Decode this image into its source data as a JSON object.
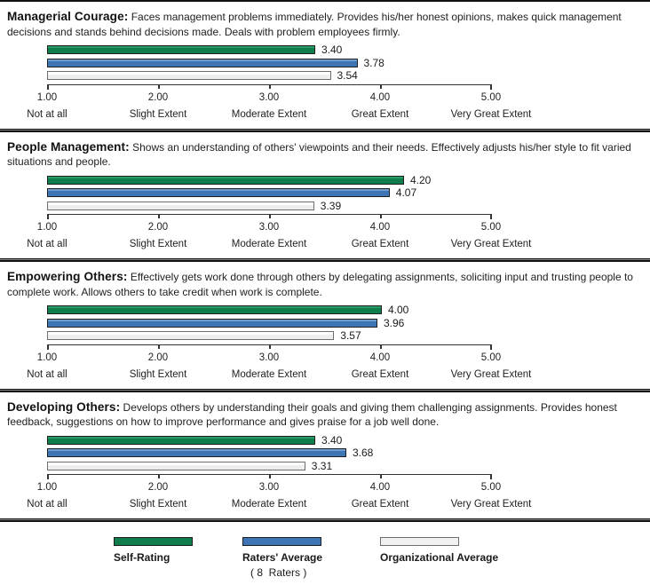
{
  "ui": {
    "title_separator": ":"
  },
  "axis": {
    "ticks": [
      "1.00",
      "2.00",
      "3.00",
      "4.00",
      "5.00"
    ],
    "extent_labels": [
      "Not at all",
      "Slight Extent",
      "Moderate Extent",
      "Great Extent",
      "Very Great Extent"
    ],
    "min": 1.0,
    "max": 5.0
  },
  "colors": {
    "self_rating": "#0e7c4b",
    "raters_average": "#3e75b5",
    "organizational_average": "#f1f1f1",
    "bar_border": "#1f1f1f",
    "org_bar_border": "#6e6e6e",
    "axis": "#333333",
    "rule": "#111111"
  },
  "legend": {
    "self_label": "Self-Rating",
    "raters_label": "Raters' Average",
    "raters_sub": "( 8  Raters )",
    "org_label": "Organizational Average"
  },
  "chart_data": [
    {
      "type": "bar",
      "title": "Managerial Courage",
      "description": "Faces management problems immediately. Provides his/her honest opinions, makes quick management decisions and stands behind decisions made. Deals with problem employees firmly.",
      "xlim": [
        1.0,
        5.0
      ],
      "series": [
        {
          "name": "Self-Rating",
          "value": 3.4,
          "label": "3.40"
        },
        {
          "name": "Raters' Average",
          "value": 3.78,
          "label": "3.78"
        },
        {
          "name": "Organizational Average",
          "value": 3.54,
          "label": "3.54"
        }
      ]
    },
    {
      "type": "bar",
      "title": "People Management",
      "description": "Shows an understanding of others' viewpoints and their needs. Effectively adjusts his/her style to fit varied situations and people.",
      "xlim": [
        1.0,
        5.0
      ],
      "series": [
        {
          "name": "Self-Rating",
          "value": 4.2,
          "label": "4.20"
        },
        {
          "name": "Raters' Average",
          "value": 4.07,
          "label": "4.07"
        },
        {
          "name": "Organizational Average",
          "value": 3.39,
          "label": "3.39"
        }
      ]
    },
    {
      "type": "bar",
      "title": "Empowering Others",
      "description": "Effectively gets work done through others by delegating assignments, soliciting input and trusting people to complete work. Allows others to take credit when work is complete.",
      "xlim": [
        1.0,
        5.0
      ],
      "series": [
        {
          "name": "Self-Rating",
          "value": 4.0,
          "label": "4.00"
        },
        {
          "name": "Raters' Average",
          "value": 3.96,
          "label": "3.96"
        },
        {
          "name": "Organizational Average",
          "value": 3.57,
          "label": "3.57"
        }
      ]
    },
    {
      "type": "bar",
      "title": "Developing Others",
      "description": "Develops others by understanding their goals and giving them challenging assignments. Provides honest feedback, suggestions on how to improve performance and gives praise for a job well done.",
      "xlim": [
        1.0,
        5.0
      ],
      "series": [
        {
          "name": "Self-Rating",
          "value": 3.4,
          "label": "3.40"
        },
        {
          "name": "Raters' Average",
          "value": 3.68,
          "label": "3.68"
        },
        {
          "name": "Organizational Average",
          "value": 3.31,
          "label": "3.31"
        }
      ]
    }
  ]
}
